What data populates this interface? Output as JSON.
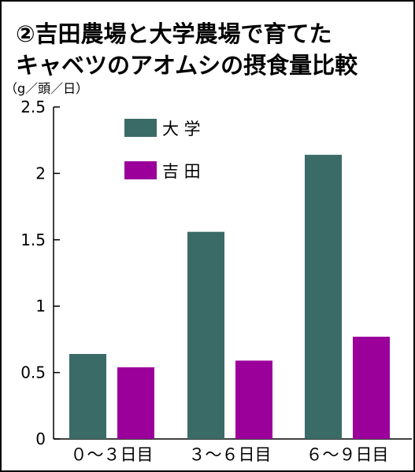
{
  "title": {
    "line1": "②吉田農場と大学農場で育てた",
    "line2": "キャベツのアオムシの摂食量比較"
  },
  "chart_data": {
    "type": "bar",
    "title": "②吉田農場と大学農場で育てたキャベツのアオムシの摂食量比較",
    "unit_label": "（g／頭／日）",
    "categories": [
      "０～３日目",
      "３～６日目",
      "６～９日目"
    ],
    "series": [
      {
        "name": "大 学",
        "color": "#3a6b67",
        "values": [
          0.64,
          1.56,
          2.14
        ]
      },
      {
        "name": "吉 田",
        "color": "#9b009b",
        "values": [
          0.54,
          0.59,
          0.77
        ]
      }
    ],
    "ylim": [
      0,
      2.5
    ],
    "yticks": [
      0,
      0.5,
      1,
      1.5,
      2,
      2.5
    ],
    "ytick_labels": [
      "0",
      "0.5",
      "1",
      "1.5",
      "2",
      "2.5"
    ],
    "grid": false,
    "legend_position": "top-left"
  }
}
